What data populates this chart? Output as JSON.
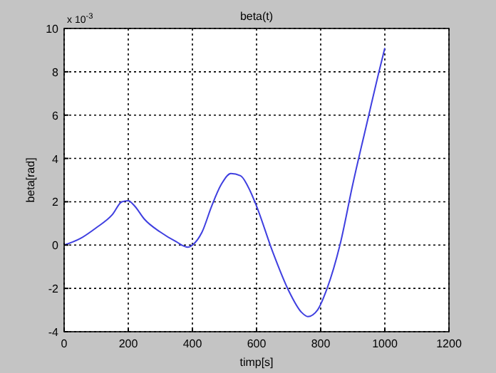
{
  "chart_data": {
    "type": "line",
    "title": "beta(t)",
    "xlabel": "timp[s]",
    "ylabel": "beta[rad]",
    "annotations": [
      "x 10$^{-3}$"
    ],
    "x": [
      0,
      50,
      100,
      150,
      180,
      200,
      220,
      250,
      300,
      350,
      385,
      400,
      430,
      460,
      490,
      520,
      550,
      580,
      600,
      650,
      700,
      740,
      760,
      790,
      820,
      860,
      900,
      950,
      980,
      1000
    ],
    "series": [
      {
        "color": "#3f3fe0",
        "values": [
          0,
          0.3,
          0.8,
          1.4,
          2.0,
          2.05,
          1.8,
          1.2,
          0.6,
          0.15,
          -0.1,
          0,
          0.6,
          1.8,
          2.8,
          3.3,
          3.2,
          2.5,
          1.8,
          -0.3,
          -2.1,
          -3.1,
          -3.3,
          -3.0,
          -2.0,
          0,
          2.8,
          6.0,
          7.9,
          9.1
        ]
      }
    ],
    "xlim": [
      0,
      1200
    ],
    "xticks": [
      0,
      200,
      400,
      600,
      800,
      1000,
      1200
    ],
    "ylim": [
      -4,
      10
    ],
    "yticks": [
      -4,
      -2,
      0,
      2,
      4,
      6,
      8,
      10
    ],
    "grid": true,
    "line_style": "solid"
  }
}
